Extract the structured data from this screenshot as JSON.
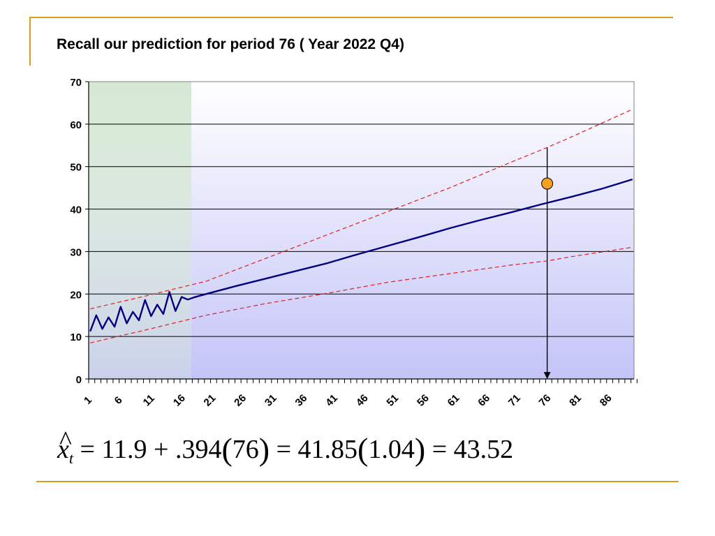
{
  "slide": {
    "title": "Recall our prediction for period 76 ( Year 2022 Q4)"
  },
  "formula": {
    "var": "x",
    "hat": "^",
    "sub": "t",
    "eq1": " = 11.9 + .394",
    "p1": "76",
    "eq2": " = 41.85",
    "p2": "1.04",
    "eq3": " = 43.52"
  },
  "chart_data": {
    "type": "line",
    "ylim": [
      0,
      70
    ],
    "y_ticks": [
      0,
      10,
      20,
      30,
      40,
      50,
      60,
      70
    ],
    "x_range": [
      1,
      90
    ],
    "x_tick_labels": [
      "1",
      "6",
      "11",
      "16",
      "21",
      "26",
      "31",
      "36",
      "41",
      "46",
      "51",
      "56",
      "61",
      "66",
      "71",
      "76",
      "81",
      "86"
    ],
    "grid": "horizontal",
    "history_shaded_periods": [
      1,
      16
    ],
    "colors": {
      "forecast": "#000080",
      "bounds": "#e02020",
      "history_band": "#d5e8d4",
      "plot_top": "#ffffff",
      "plot_bottom": "#c4c4f8",
      "point": "#f5a020"
    },
    "series": [
      {
        "role": "actual-and-forecast",
        "x": [
          1,
          2,
          3,
          4,
          5,
          6,
          7,
          8,
          9,
          10,
          11,
          12,
          13,
          14,
          15,
          16,
          17,
          18,
          19,
          20,
          25,
          30,
          35,
          40,
          45,
          50,
          55,
          60,
          65,
          70,
          75,
          80,
          85,
          90
        ],
        "values": [
          11.2,
          15.0,
          11.8,
          14.5,
          12.3,
          17.0,
          13.1,
          15.8,
          13.8,
          18.6,
          14.8,
          17.5,
          15.3,
          20.5,
          16.0,
          19.3,
          18.7,
          19.2,
          19.6,
          20.0,
          21.9,
          23.7,
          25.5,
          27.3,
          29.4,
          31.4,
          33.4,
          35.5,
          37.4,
          39.2,
          41.1,
          42.9,
          44.8,
          47.0
        ]
      },
      {
        "role": "upper-bound",
        "x": [
          1,
          10,
          20,
          30,
          40,
          50,
          60,
          70,
          76,
          80,
          90
        ],
        "values": [
          16.5,
          19.5,
          23.0,
          28.5,
          34.0,
          39.5,
          45.0,
          51.0,
          54.5,
          57.0,
          63.5
        ]
      },
      {
        "role": "lower-bound",
        "x": [
          1,
          10,
          20,
          30,
          40,
          50,
          60,
          70,
          76,
          80,
          90
        ],
        "values": [
          8.5,
          11.5,
          15.0,
          17.8,
          20.2,
          22.8,
          24.8,
          26.8,
          27.8,
          28.8,
          31.0
        ]
      }
    ],
    "highlight": {
      "period": 76,
      "point_value": 46.0,
      "arrow_from_value": 54.5,
      "arrow_to_value": 0
    }
  }
}
